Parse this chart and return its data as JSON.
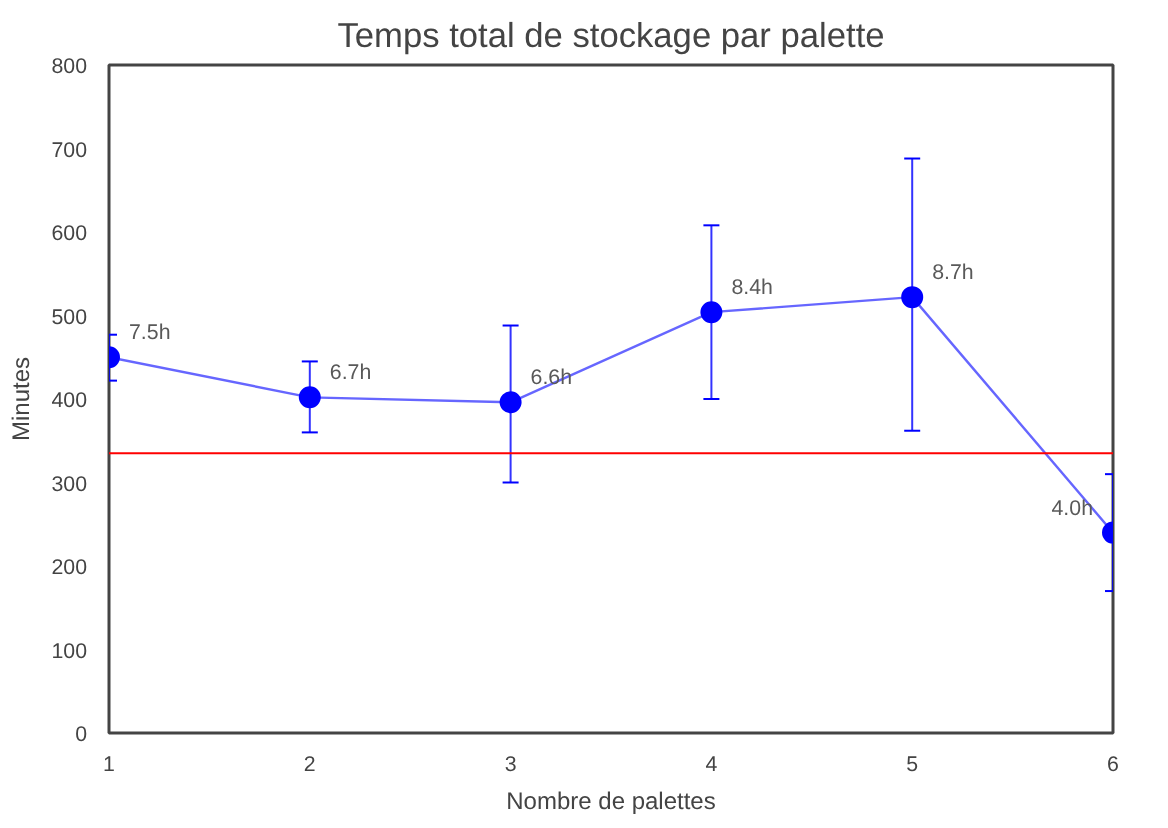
{
  "chart_data": {
    "type": "line",
    "title": "Temps total de stockage par palette",
    "xlabel": "Nombre de palettes",
    "ylabel": "Minutes",
    "x": [
      1,
      2,
      3,
      4,
      5,
      6
    ],
    "series": [
      {
        "color": "#0000ff",
        "values": [
          450,
          402,
          396,
          504,
          522,
          240
        ],
        "errors": [
          [
            422,
            477
          ],
          [
            360,
            445
          ],
          [
            300,
            488
          ],
          [
            400,
            608
          ],
          [
            362,
            688
          ],
          [
            170,
            310
          ]
        ]
      }
    ],
    "annotations": [
      {
        "text": "7.5h",
        "x": 1,
        "y": 450
      },
      {
        "text": "6.7h",
        "x": 2,
        "y": 402
      },
      {
        "text": "6.6h",
        "x": 3,
        "y": 396
      },
      {
        "text": "8.4h",
        "x": 4,
        "y": 504
      },
      {
        "text": "8.7h",
        "x": 5,
        "y": 522
      },
      {
        "text": "4.0h",
        "x": 6,
        "y": 240
      }
    ],
    "xlim": [
      1,
      6
    ],
    "ylim": [
      0,
      800
    ],
    "xticks": [
      1,
      2,
      3,
      4,
      5,
      6
    ],
    "yticks": [
      0,
      100,
      200,
      300,
      400,
      500,
      600,
      700,
      800
    ],
    "ref_lines": [
      {
        "axis": "y",
        "value": 335,
        "color": "#ff0000"
      }
    ],
    "marker": "circle",
    "grid": false
  }
}
